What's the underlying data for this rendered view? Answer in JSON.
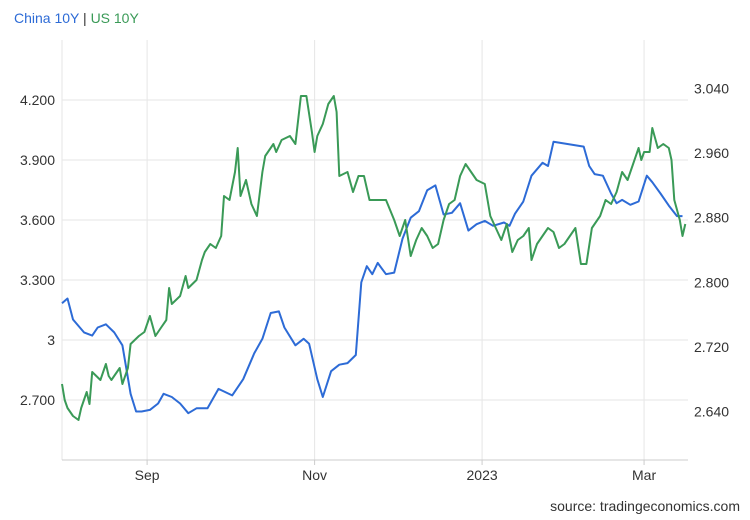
{
  "legend": {
    "series1": "China 10Y",
    "separator": "|",
    "series2": "US 10Y"
  },
  "source": "source: tradingeconomics.com",
  "colors": {
    "china": "#2d6bd6",
    "us": "#3a9a57",
    "grid": "#e6e6e6",
    "text": "#333333"
  },
  "chart_data": {
    "type": "line",
    "title": "",
    "legend_position": "top-left",
    "grid": true,
    "x_range": [
      "2022-08-01",
      "2023-03-17"
    ],
    "x_ticks": [
      {
        "label": "Sep",
        "date": "2022-09-01"
      },
      {
        "label": "Nov",
        "date": "2022-11-01"
      },
      {
        "label": "2023",
        "date": "2023-01-01"
      },
      {
        "label": "Mar",
        "date": "2023-03-01"
      }
    ],
    "left_axis": {
      "series": "US 10Y",
      "range": [
        2.4,
        4.5
      ],
      "ticks": [
        {
          "label": "2.700",
          "value": 2.7
        },
        {
          "label": "3",
          "value": 3.0
        },
        {
          "label": "3.300",
          "value": 3.3
        },
        {
          "label": "3.600",
          "value": 3.6
        },
        {
          "label": "3.900",
          "value": 3.9
        },
        {
          "label": "4.200",
          "value": 4.2
        }
      ]
    },
    "right_axis": {
      "series": "China 10Y",
      "range": [
        2.58,
        3.1
      ],
      "ticks": [
        {
          "label": "2.640",
          "value": 2.64
        },
        {
          "label": "2.720",
          "value": 2.72
        },
        {
          "label": "2.800",
          "value": 2.8
        },
        {
          "label": "2.880",
          "value": 2.88
        },
        {
          "label": "2.960",
          "value": 2.96
        },
        {
          "label": "3.040",
          "value": 3.04
        }
      ]
    },
    "series": [
      {
        "name": "China 10Y",
        "axis": "right",
        "color": "#2d6bd6",
        "points": [
          [
            "2022-08-01",
            2.774
          ],
          [
            "2022-08-03",
            2.78
          ],
          [
            "2022-08-05",
            2.754
          ],
          [
            "2022-08-09",
            2.738
          ],
          [
            "2022-08-12",
            2.734
          ],
          [
            "2022-08-14",
            2.744
          ],
          [
            "2022-08-17",
            2.748
          ],
          [
            "2022-08-20",
            2.738
          ],
          [
            "2022-08-23",
            2.722
          ],
          [
            "2022-08-26",
            2.662
          ],
          [
            "2022-08-28",
            2.64
          ],
          [
            "2022-08-30",
            2.64
          ],
          [
            "2022-09-02",
            2.642
          ],
          [
            "2022-09-05",
            2.65
          ],
          [
            "2022-09-07",
            2.662
          ],
          [
            "2022-09-10",
            2.658
          ],
          [
            "2022-09-13",
            2.65
          ],
          [
            "2022-09-16",
            2.638
          ],
          [
            "2022-09-19",
            2.644
          ],
          [
            "2022-09-23",
            2.644
          ],
          [
            "2022-09-27",
            2.668
          ],
          [
            "2022-10-02",
            2.66
          ],
          [
            "2022-10-06",
            2.68
          ],
          [
            "2022-10-10",
            2.712
          ],
          [
            "2022-10-13",
            2.73
          ],
          [
            "2022-10-16",
            2.762
          ],
          [
            "2022-10-19",
            2.764
          ],
          [
            "2022-10-21",
            2.744
          ],
          [
            "2022-10-25",
            2.722
          ],
          [
            "2022-10-28",
            2.73
          ],
          [
            "2022-10-30",
            2.724
          ],
          [
            "2022-11-02",
            2.68
          ],
          [
            "2022-11-04",
            2.658
          ],
          [
            "2022-11-07",
            2.69
          ],
          [
            "2022-11-10",
            2.698
          ],
          [
            "2022-11-13",
            2.7
          ],
          [
            "2022-11-16",
            2.71
          ],
          [
            "2022-11-18",
            2.8
          ],
          [
            "2022-11-20",
            2.82
          ],
          [
            "2022-11-22",
            2.81
          ],
          [
            "2022-11-24",
            2.824
          ],
          [
            "2022-11-27",
            2.81
          ],
          [
            "2022-11-30",
            2.812
          ],
          [
            "2022-12-03",
            2.854
          ],
          [
            "2022-12-06",
            2.88
          ],
          [
            "2022-12-09",
            2.888
          ],
          [
            "2022-12-12",
            2.914
          ],
          [
            "2022-12-15",
            2.92
          ],
          [
            "2022-12-18",
            2.884
          ],
          [
            "2022-12-21",
            2.886
          ],
          [
            "2022-12-24",
            2.898
          ],
          [
            "2022-12-27",
            2.864
          ],
          [
            "2022-12-30",
            2.872
          ],
          [
            "2023-01-02",
            2.876
          ],
          [
            "2023-01-05",
            2.87
          ],
          [
            "2023-01-09",
            2.874
          ],
          [
            "2023-01-11",
            2.87
          ],
          [
            "2023-01-13",
            2.885
          ],
          [
            "2023-01-16",
            2.9
          ],
          [
            "2023-01-19",
            2.932
          ],
          [
            "2023-01-23",
            2.948
          ],
          [
            "2023-01-25",
            2.944
          ],
          [
            "2023-01-27",
            2.974
          ],
          [
            "2023-02-07",
            2.968
          ],
          [
            "2023-02-09",
            2.944
          ],
          [
            "2023-02-11",
            2.934
          ],
          [
            "2023-02-14",
            2.932
          ],
          [
            "2023-02-17",
            2.91
          ],
          [
            "2023-02-19",
            2.898
          ],
          [
            "2023-02-21",
            2.902
          ],
          [
            "2023-02-24",
            2.896
          ],
          [
            "2023-02-27",
            2.9
          ],
          [
            "2023-03-02",
            2.932
          ],
          [
            "2023-03-04",
            2.924
          ],
          [
            "2023-03-07",
            2.91
          ],
          [
            "2023-03-10",
            2.895
          ],
          [
            "2023-03-13",
            2.882
          ],
          [
            "2023-03-15",
            2.882
          ]
        ]
      },
      {
        "name": "US 10Y",
        "axis": "left",
        "color": "#3a9a57",
        "points": [
          [
            "2022-08-01",
            2.78
          ],
          [
            "2022-08-02",
            2.7
          ],
          [
            "2022-08-03",
            2.66
          ],
          [
            "2022-08-05",
            2.62
          ],
          [
            "2022-08-07",
            2.6
          ],
          [
            "2022-08-08",
            2.66
          ],
          [
            "2022-08-10",
            2.74
          ],
          [
            "2022-08-11",
            2.68
          ],
          [
            "2022-08-12",
            2.84
          ],
          [
            "2022-08-15",
            2.8
          ],
          [
            "2022-08-17",
            2.88
          ],
          [
            "2022-08-18",
            2.82
          ],
          [
            "2022-08-19",
            2.8
          ],
          [
            "2022-08-22",
            2.86
          ],
          [
            "2022-08-23",
            2.78
          ],
          [
            "2022-08-25",
            2.86
          ],
          [
            "2022-08-26",
            2.98
          ],
          [
            "2022-08-29",
            3.02
          ],
          [
            "2022-08-31",
            3.04
          ],
          [
            "2022-09-02",
            3.12
          ],
          [
            "2022-09-04",
            3.02
          ],
          [
            "2022-09-06",
            3.06
          ],
          [
            "2022-09-08",
            3.1
          ],
          [
            "2022-09-09",
            3.26
          ],
          [
            "2022-09-10",
            3.18
          ],
          [
            "2022-09-13",
            3.22
          ],
          [
            "2022-09-15",
            3.32
          ],
          [
            "2022-09-16",
            3.26
          ],
          [
            "2022-09-19",
            3.3
          ],
          [
            "2022-09-21",
            3.4
          ],
          [
            "2022-09-22",
            3.44
          ],
          [
            "2022-09-24",
            3.48
          ],
          [
            "2022-09-26",
            3.46
          ],
          [
            "2022-09-28",
            3.52
          ],
          [
            "2022-09-29",
            3.72
          ],
          [
            "2022-10-01",
            3.7
          ],
          [
            "2022-10-03",
            3.84
          ],
          [
            "2022-10-04",
            3.96
          ],
          [
            "2022-10-05",
            3.72
          ],
          [
            "2022-10-07",
            3.8
          ],
          [
            "2022-10-09",
            3.68
          ],
          [
            "2022-10-11",
            3.62
          ],
          [
            "2022-10-13",
            3.84
          ],
          [
            "2022-10-14",
            3.92
          ],
          [
            "2022-10-17",
            3.98
          ],
          [
            "2022-10-18",
            3.94
          ],
          [
            "2022-10-20",
            4.0
          ],
          [
            "2022-10-23",
            4.02
          ],
          [
            "2022-10-25",
            3.98
          ],
          [
            "2022-10-27",
            4.22
          ],
          [
            "2022-10-29",
            4.22
          ],
          [
            "2022-10-31",
            4.04
          ],
          [
            "2022-11-01",
            3.94
          ],
          [
            "2022-11-02",
            4.02
          ],
          [
            "2022-11-04",
            4.08
          ],
          [
            "2022-11-06",
            4.18
          ],
          [
            "2022-11-08",
            4.22
          ],
          [
            "2022-11-09",
            4.14
          ],
          [
            "2022-11-10",
            3.82
          ],
          [
            "2022-11-13",
            3.84
          ],
          [
            "2022-11-15",
            3.74
          ],
          [
            "2022-11-17",
            3.82
          ],
          [
            "2022-11-19",
            3.82
          ],
          [
            "2022-11-21",
            3.7
          ],
          [
            "2022-11-24",
            3.7
          ],
          [
            "2022-11-27",
            3.7
          ],
          [
            "2022-11-30",
            3.6
          ],
          [
            "2022-12-02",
            3.52
          ],
          [
            "2022-12-04",
            3.6
          ],
          [
            "2022-12-06",
            3.42
          ],
          [
            "2022-12-08",
            3.5
          ],
          [
            "2022-12-10",
            3.56
          ],
          [
            "2022-12-12",
            3.52
          ],
          [
            "2022-12-14",
            3.46
          ],
          [
            "2022-12-16",
            3.48
          ],
          [
            "2022-12-18",
            3.6
          ],
          [
            "2022-12-20",
            3.68
          ],
          [
            "2022-12-22",
            3.7
          ],
          [
            "2022-12-24",
            3.82
          ],
          [
            "2022-12-26",
            3.88
          ],
          [
            "2022-12-28",
            3.84
          ],
          [
            "2022-12-30",
            3.8
          ],
          [
            "2023-01-02",
            3.78
          ],
          [
            "2023-01-04",
            3.62
          ],
          [
            "2023-01-06",
            3.56
          ],
          [
            "2023-01-08",
            3.5
          ],
          [
            "2023-01-10",
            3.58
          ],
          [
            "2023-01-12",
            3.44
          ],
          [
            "2023-01-14",
            3.5
          ],
          [
            "2023-01-16",
            3.52
          ],
          [
            "2023-01-18",
            3.56
          ],
          [
            "2023-01-19",
            3.4
          ],
          [
            "2023-01-21",
            3.48
          ],
          [
            "2023-01-23",
            3.52
          ],
          [
            "2023-01-25",
            3.56
          ],
          [
            "2023-01-27",
            3.54
          ],
          [
            "2023-01-29",
            3.46
          ],
          [
            "2023-01-31",
            3.48
          ],
          [
            "2023-02-02",
            3.52
          ],
          [
            "2023-02-04",
            3.56
          ],
          [
            "2023-02-06",
            3.38
          ],
          [
            "2023-02-08",
            3.38
          ],
          [
            "2023-02-10",
            3.56
          ],
          [
            "2023-02-13",
            3.62
          ],
          [
            "2023-02-15",
            3.7
          ],
          [
            "2023-02-17",
            3.68
          ],
          [
            "2023-02-19",
            3.74
          ],
          [
            "2023-02-21",
            3.84
          ],
          [
            "2023-02-23",
            3.8
          ],
          [
            "2023-02-25",
            3.88
          ],
          [
            "2023-02-27",
            3.96
          ],
          [
            "2023-02-28",
            3.9
          ],
          [
            "2023-03-01",
            3.94
          ],
          [
            "2023-03-03",
            3.94
          ],
          [
            "2023-03-04",
            4.06
          ],
          [
            "2023-03-06",
            3.96
          ],
          [
            "2023-03-08",
            3.98
          ],
          [
            "2023-03-10",
            3.96
          ],
          [
            "2023-03-11",
            3.9
          ],
          [
            "2023-03-12",
            3.7
          ],
          [
            "2023-03-14",
            3.6
          ],
          [
            "2023-03-15",
            3.52
          ],
          [
            "2023-03-16",
            3.58
          ]
        ]
      }
    ]
  }
}
